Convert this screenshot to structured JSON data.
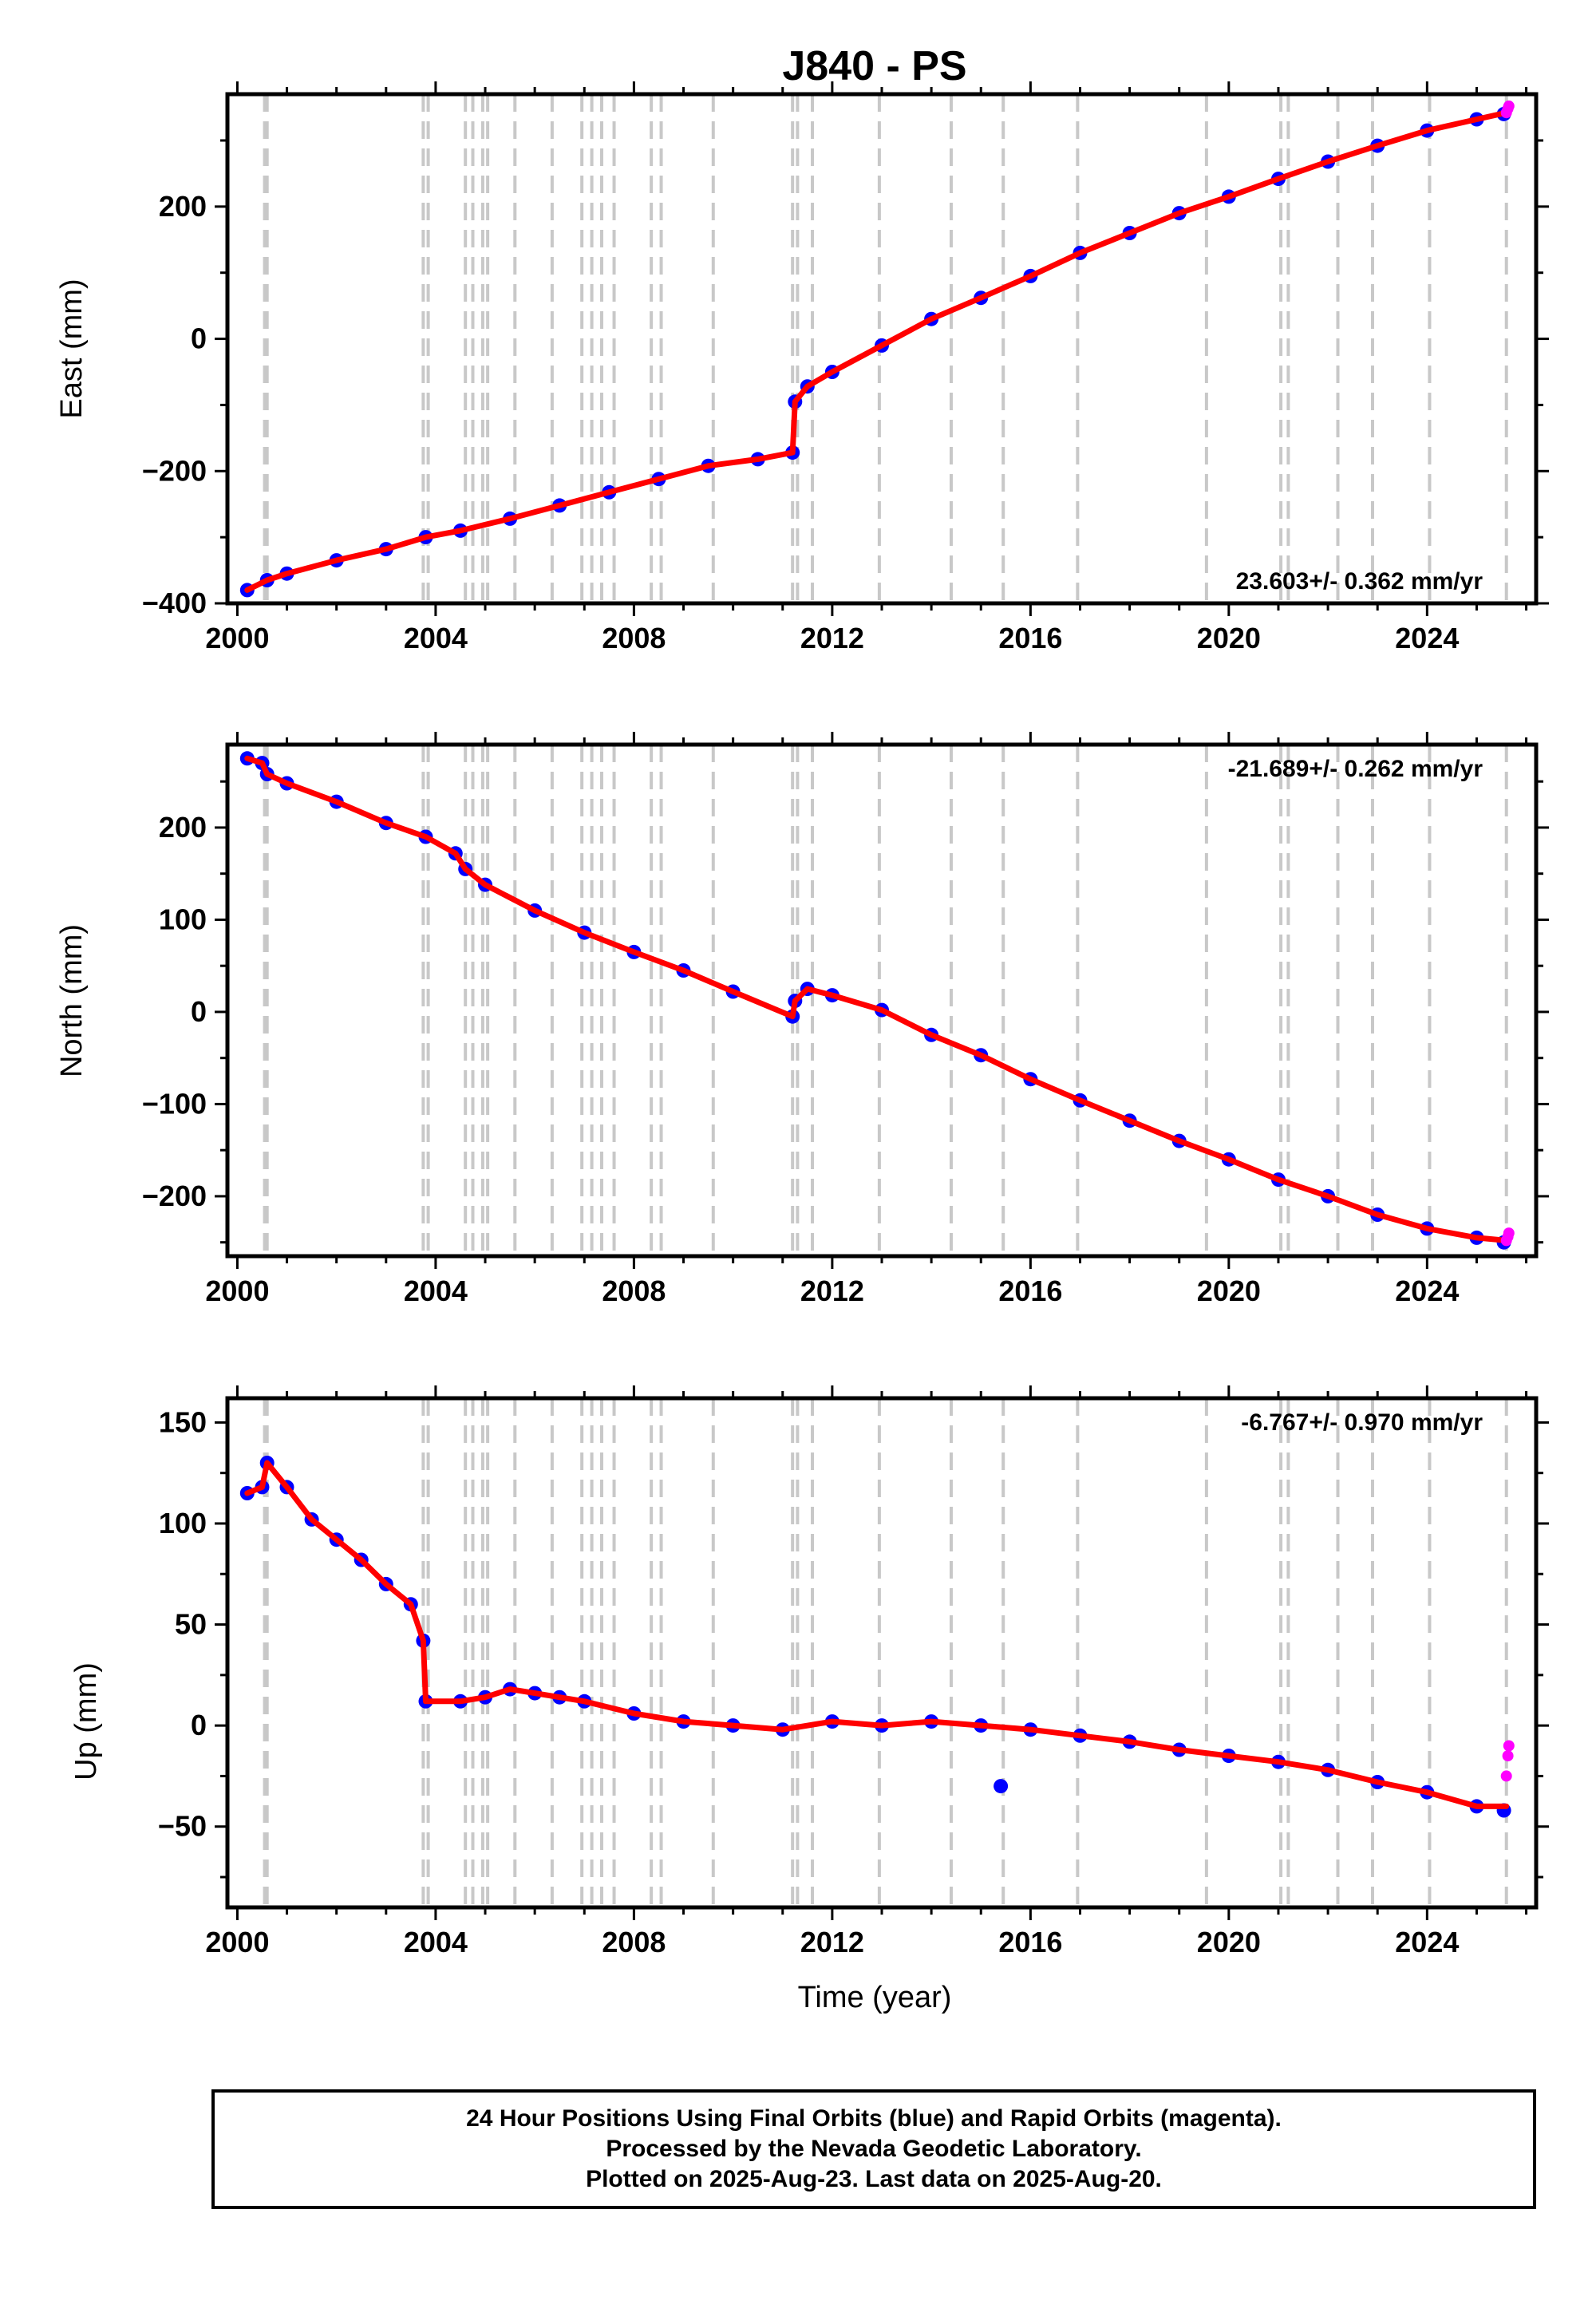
{
  "title": "J840 - PS",
  "xlabel": "Time (year)",
  "footer": {
    "line1": "24 Hour Positions Using Final Orbits (blue) and Rapid Orbits (magenta).",
    "line2": "Processed by the Nevada Geodetic Laboratory.",
    "line3": "Plotted on 2025-Aug-23. Last data on 2025-Aug-20."
  },
  "colors": {
    "final_orbits": "#0000ff",
    "rapid_orbits": "#ff00ff",
    "model_fit": "#ff0000",
    "event_lines": "#c8c8c8",
    "frame": "#000000"
  },
  "chart_data": [
    {
      "type": "scatter",
      "component": "east",
      "title": "J840 - PS",
      "xlabel": "",
      "ylabel": "East (mm)",
      "xlim": [
        1999.8,
        2026.2
      ],
      "ylim": [
        -400,
        370
      ],
      "xticks": [
        2000,
        2004,
        2008,
        2012,
        2016,
        2020,
        2024
      ],
      "yticks": [
        -400,
        -200,
        0,
        200
      ],
      "rate_label": "23.603+/- 0.362 mm/yr",
      "rate_position": "bottom-right",
      "series": [
        {
          "name": "final orbits",
          "color": "#0000ff",
          "x": [
            2000.2,
            2000.6,
            2001.0,
            2002.0,
            2003.0,
            2003.8,
            2004.5,
            2005.5,
            2006.5,
            2007.5,
            2008.5,
            2009.5,
            2010.5,
            2011.2,
            2011.25,
            2011.5,
            2012.0,
            2013.0,
            2014.0,
            2015.0,
            2016.0,
            2017.0,
            2018.0,
            2019.0,
            2020.0,
            2021.0,
            2022.0,
            2023.0,
            2024.0,
            2025.0,
            2025.55
          ],
          "y": [
            -380,
            -365,
            -355,
            -335,
            -318,
            -300,
            -290,
            -272,
            -252,
            -232,
            -212,
            -192,
            -182,
            -172,
            -95,
            -72,
            -50,
            -10,
            30,
            62,
            95,
            130,
            160,
            190,
            215,
            242,
            268,
            292,
            315,
            332,
            340
          ]
        },
        {
          "name": "rapid orbits",
          "color": "#ff00ff",
          "x": [
            2025.6,
            2025.63,
            2025.65
          ],
          "y": [
            342,
            348,
            352
          ]
        },
        {
          "name": "model fit",
          "color": "#ff0000",
          "x": [
            2000.2,
            2000.6,
            2001.0,
            2002.0,
            2003.0,
            2003.8,
            2004.5,
            2005.5,
            2006.5,
            2007.5,
            2008.5,
            2009.5,
            2010.5,
            2011.2,
            2011.25,
            2011.5,
            2012.0,
            2013.0,
            2014.0,
            2015.0,
            2016.0,
            2017.0,
            2018.0,
            2019.0,
            2020.0,
            2021.0,
            2022.0,
            2023.0,
            2024.0,
            2025.0,
            2025.6
          ],
          "y": [
            -380,
            -365,
            -355,
            -335,
            -318,
            -300,
            -290,
            -272,
            -252,
            -232,
            -212,
            -192,
            -182,
            -172,
            -95,
            -72,
            -50,
            -10,
            30,
            62,
            95,
            130,
            160,
            190,
            215,
            242,
            268,
            292,
            315,
            332,
            342
          ]
        }
      ]
    },
    {
      "type": "scatter",
      "component": "north",
      "xlabel": "",
      "ylabel": "North (mm)",
      "xlim": [
        1999.8,
        2026.2
      ],
      "ylim": [
        -265,
        290
      ],
      "xticks": [
        2000,
        2004,
        2008,
        2012,
        2016,
        2020,
        2024
      ],
      "yticks": [
        -200,
        -100,
        0,
        100,
        200
      ],
      "rate_label": "-21.689+/- 0.262 mm/yr",
      "rate_position": "top-right",
      "series": [
        {
          "name": "final orbits",
          "color": "#0000ff",
          "x": [
            2000.2,
            2000.5,
            2000.6,
            2001.0,
            2002.0,
            2003.0,
            2003.8,
            2004.4,
            2004.6,
            2005.0,
            2006.0,
            2007.0,
            2008.0,
            2009.0,
            2010.0,
            2011.2,
            2011.25,
            2011.5,
            2012.0,
            2013.0,
            2014.0,
            2015.0,
            2016.0,
            2017.0,
            2018.0,
            2019.0,
            2020.0,
            2021.0,
            2022.0,
            2023.0,
            2024.0,
            2025.0,
            2025.55
          ],
          "y": [
            275,
            270,
            258,
            248,
            228,
            205,
            190,
            172,
            155,
            138,
            110,
            86,
            65,
            45,
            22,
            -5,
            12,
            25,
            18,
            2,
            -25,
            -47,
            -73,
            -96,
            -118,
            -140,
            -160,
            -182,
            -200,
            -220,
            -235,
            -245,
            -250
          ]
        },
        {
          "name": "rapid orbits",
          "color": "#ff00ff",
          "x": [
            2025.6,
            2025.63,
            2025.65
          ],
          "y": [
            -248,
            -244,
            -240
          ]
        },
        {
          "name": "model fit",
          "color": "#ff0000",
          "x": [
            2000.2,
            2000.5,
            2000.6,
            2001.0,
            2002.0,
            2003.0,
            2003.8,
            2004.4,
            2004.6,
            2005.0,
            2006.0,
            2007.0,
            2008.0,
            2009.0,
            2010.0,
            2011.2,
            2011.25,
            2011.5,
            2012.0,
            2013.0,
            2014.0,
            2015.0,
            2016.0,
            2017.0,
            2018.0,
            2019.0,
            2020.0,
            2021.0,
            2022.0,
            2023.0,
            2024.0,
            2025.0,
            2025.6
          ],
          "y": [
            275,
            270,
            258,
            248,
            228,
            205,
            190,
            172,
            155,
            138,
            110,
            86,
            65,
            45,
            22,
            -5,
            12,
            25,
            18,
            2,
            -25,
            -47,
            -73,
            -96,
            -118,
            -140,
            -160,
            -182,
            -200,
            -220,
            -235,
            -245,
            -248
          ]
        }
      ]
    },
    {
      "type": "scatter",
      "component": "up",
      "xlabel": "Time (year)",
      "ylabel": "Up (mm)",
      "xlim": [
        1999.8,
        2026.2
      ],
      "ylim": [
        -90,
        162
      ],
      "xticks": [
        2000,
        2004,
        2008,
        2012,
        2016,
        2020,
        2024
      ],
      "yticks": [
        -50,
        0,
        50,
        100,
        150
      ],
      "rate_label": "-6.767+/- 0.970 mm/yr",
      "rate_position": "top-right",
      "series": [
        {
          "name": "final orbits",
          "color": "#0000ff",
          "x": [
            2000.2,
            2000.5,
            2000.6,
            2001.0,
            2001.5,
            2002.0,
            2002.5,
            2003.0,
            2003.5,
            2003.75,
            2003.8,
            2004.5,
            2005.0,
            2005.5,
            2006.0,
            2006.5,
            2007.0,
            2008.0,
            2009.0,
            2010.0,
            2011.0,
            2012.0,
            2013.0,
            2014.0,
            2015.0,
            2015.4,
            2016.0,
            2017.0,
            2018.0,
            2019.0,
            2020.0,
            2021.0,
            2022.0,
            2023.0,
            2024.0,
            2025.0,
            2025.55
          ],
          "y": [
            115,
            118,
            130,
            118,
            102,
            92,
            82,
            70,
            60,
            42,
            12,
            12,
            14,
            18,
            16,
            14,
            12,
            6,
            2,
            0,
            -2,
            2,
            0,
            2,
            0,
            -30,
            -2,
            -5,
            -8,
            -12,
            -15,
            -18,
            -22,
            -28,
            -33,
            -40,
            -42
          ]
        },
        {
          "name": "rapid orbits",
          "color": "#ff00ff",
          "x": [
            2025.6,
            2025.63,
            2025.65
          ],
          "y": [
            -25,
            -15,
            -10
          ]
        },
        {
          "name": "model fit",
          "color": "#ff0000",
          "x": [
            2000.2,
            2000.5,
            2000.6,
            2001.0,
            2001.5,
            2002.0,
            2002.5,
            2003.0,
            2003.5,
            2003.75,
            2003.8,
            2004.5,
            2005.0,
            2005.5,
            2006.0,
            2006.5,
            2007.0,
            2008.0,
            2009.0,
            2010.0,
            2011.0,
            2012.0,
            2013.0,
            2014.0,
            2015.0,
            2016.0,
            2017.0,
            2018.0,
            2019.0,
            2020.0,
            2021.0,
            2022.0,
            2023.0,
            2024.0,
            2025.0,
            2025.6
          ],
          "y": [
            115,
            118,
            130,
            118,
            102,
            92,
            82,
            70,
            60,
            42,
            12,
            12,
            14,
            18,
            16,
            14,
            12,
            6,
            2,
            0,
            -2,
            2,
            0,
            2,
            0,
            -2,
            -5,
            -8,
            -12,
            -15,
            -18,
            -22,
            -28,
            -33,
            -40,
            -40
          ]
        }
      ]
    }
  ],
  "event_lines_years": [
    2000.55,
    2000.6,
    2003.75,
    2003.85,
    2004.6,
    2004.75,
    2004.95,
    2005.05,
    2005.6,
    2006.35,
    2006.95,
    2007.15,
    2007.35,
    2007.6,
    2008.35,
    2008.55,
    2009.6,
    2011.2,
    2011.3,
    2011.6,
    2012.95,
    2014.4,
    2015.45,
    2016.95,
    2019.55,
    2021.05,
    2021.2,
    2022.2,
    2022.9,
    2024.05,
    2025.6
  ]
}
